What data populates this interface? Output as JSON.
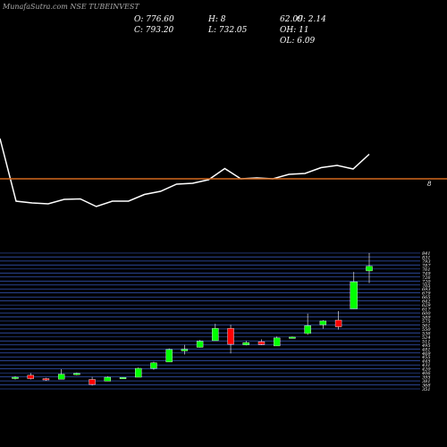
{
  "header": {
    "title": "MunafaSutra.com NSE TUBEINVEST",
    "open_text": "O: 776.60",
    "high_text": "H: 8",
    "close_text": "C: 793.20",
    "low_text": "L: 732.05",
    "extra_text": "62.09",
    "change_text": "C: 2.14",
    "oh_text": "OH: 11",
    "ol_text": "OL: 6.09"
  },
  "colors": {
    "background": "#000000",
    "line": "#ffffff",
    "divider": "#d2691e",
    "grid": "#4169e1",
    "up": "#00ff00",
    "down": "#ff0000"
  },
  "chart_data": [
    {
      "type": "line",
      "title": "",
      "x": [
        1,
        2,
        3,
        4,
        5,
        6,
        7,
        8,
        9,
        10,
        11,
        12,
        13,
        14,
        15,
        16,
        17,
        18,
        19,
        20,
        21,
        22,
        23,
        24
      ],
      "values": [
        610,
        470,
        466,
        464,
        474,
        475,
        458,
        470,
        470,
        485,
        492,
        508,
        510,
        518,
        543,
        520,
        522,
        520,
        530,
        532,
        545,
        550,
        542,
        575
      ],
      "ylim": [
        400,
        800
      ],
      "grid": false
    },
    {
      "type": "candlestick",
      "y_tick_labels": [
        "841",
        "831",
        "793",
        "787",
        "761",
        "749",
        "726",
        "720",
        "705",
        "693",
        "679",
        "665",
        "642",
        "629",
        "617",
        "600",
        "589",
        "575",
        "561",
        "550",
        "536",
        "524",
        "511",
        "495",
        "481",
        "469",
        "455",
        "445",
        "431",
        "420",
        "406",
        "395",
        "381",
        "368",
        "351"
      ],
      "x_tick_label": "8",
      "ylim": [
        351,
        841
      ],
      "candles": [
        {
          "open": 389,
          "high": 397,
          "low": 385,
          "close": 393
        },
        {
          "open": 400,
          "high": 408,
          "low": 385,
          "close": 388
        },
        {
          "open": 388,
          "high": 391,
          "low": 380,
          "close": 384
        },
        {
          "open": 386,
          "high": 422,
          "low": 386,
          "close": 404
        },
        {
          "open": 404,
          "high": 410,
          "low": 400,
          "close": 407
        },
        {
          "open": 385,
          "high": 394,
          "low": 363,
          "close": 367
        },
        {
          "open": 379,
          "high": 396,
          "low": 379,
          "close": 393
        },
        {
          "open": 391,
          "high": 393,
          "low": 389,
          "close": 392
        },
        {
          "open": 393,
          "high": 428,
          "low": 393,
          "close": 425
        },
        {
          "open": 425,
          "high": 449,
          "low": 420,
          "close": 445
        },
        {
          "open": 448,
          "high": 497,
          "low": 448,
          "close": 493
        },
        {
          "open": 488,
          "high": 510,
          "low": 475,
          "close": 494
        },
        {
          "open": 501,
          "high": 527,
          "low": 500,
          "close": 523
        },
        {
          "open": 525,
          "high": 586,
          "low": 525,
          "close": 569
        },
        {
          "open": 569,
          "high": 582,
          "low": 479,
          "close": 512
        },
        {
          "open": 510,
          "high": 524,
          "low": 508,
          "close": 518
        },
        {
          "open": 521,
          "high": 530,
          "low": 509,
          "close": 511
        },
        {
          "open": 506,
          "high": 540,
          "low": 506,
          "close": 535
        },
        {
          "open": 535,
          "high": 540,
          "low": 533,
          "close": 538
        },
        {
          "open": 551,
          "high": 622,
          "low": 546,
          "close": 579
        },
        {
          "open": 582,
          "high": 599,
          "low": 568,
          "close": 596
        },
        {
          "open": 599,
          "high": 632,
          "low": 565,
          "close": 575
        },
        {
          "open": 640,
          "high": 773,
          "low": 640,
          "close": 737
        },
        {
          "open": 776.6,
          "high": 841,
          "low": 732.05,
          "close": 793.2
        }
      ]
    }
  ]
}
